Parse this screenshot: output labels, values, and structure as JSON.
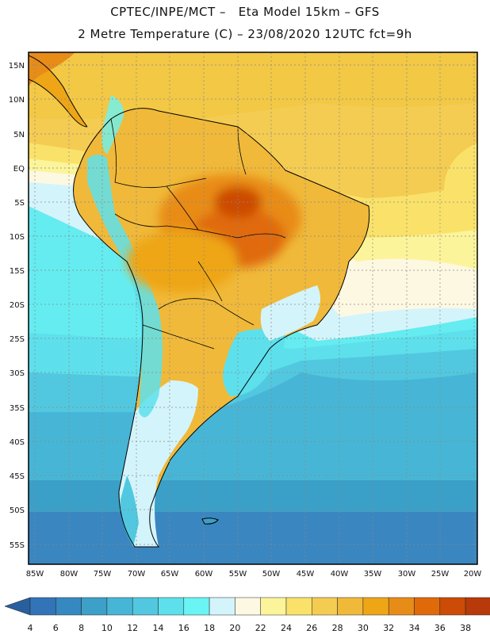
{
  "header": {
    "title_line1": "CPTEC/INPE/MCT –   Eta Model 15km – GFS",
    "title_line2": "2 Metre Temperature (C) – 23/08/2020 12UTC fct=9h"
  },
  "map": {
    "lat_labels": [
      "15N",
      "10N",
      "5N",
      "EQ",
      "5S",
      "10S",
      "15S",
      "20S",
      "25S",
      "30S",
      "35S",
      "40S",
      "45S",
      "50S",
      "55S"
    ],
    "lon_labels": [
      "85W",
      "80W",
      "75W",
      "70W",
      "65W",
      "60W",
      "55W",
      "50W",
      "45W",
      "40W",
      "35W",
      "30W",
      "25W",
      "20W"
    ]
  },
  "legend": {
    "labels": [
      "4",
      "6",
      "8",
      "10",
      "12",
      "14",
      "16",
      "18",
      "20",
      "22",
      "24",
      "26",
      "28",
      "30",
      "32",
      "34",
      "36",
      "38"
    ],
    "colors": [
      "#3374b8",
      "#3688c0",
      "#3da0c8",
      "#47b6d6",
      "#52c8e0",
      "#5de0ec",
      "#6af4f4",
      "#d4f4fb",
      "#fdf8e2",
      "#fcf49a",
      "#fae26a",
      "#f4cc52",
      "#f0b93a",
      "#eea616",
      "#e88c18",
      "#e06a0a",
      "#cc4b06",
      "#b83a0a"
    ],
    "low_arrow_color": "#2a5f9e",
    "high_arrow_color": "#a8330a"
  },
  "colors": {
    "ocean_north": "#f2c845",
    "land_hot": "#e3901e"
  }
}
